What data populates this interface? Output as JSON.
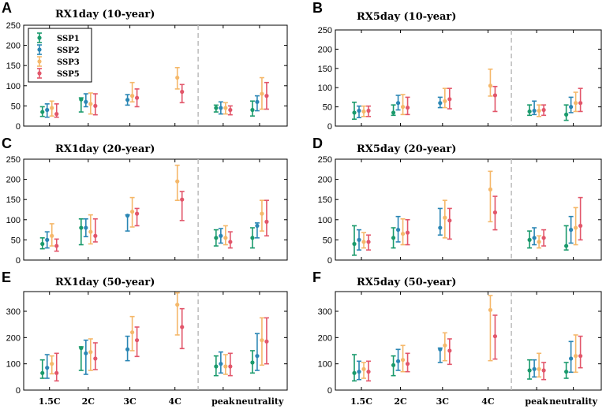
{
  "chart_data": [
    {
      "type": "errorbar",
      "panel": "A",
      "title": "RX1day (10-year)",
      "ylim": [
        0,
        250
      ],
      "yticks": [
        0,
        50,
        100,
        150,
        200,
        250
      ],
      "categories": [
        "1.5C",
        "2C",
        "3C",
        "4C",
        "peak",
        "neutrality"
      ],
      "legend": [
        "SSP1",
        "SSP2",
        "SSP3",
        "SSP5"
      ],
      "series": [
        {
          "name": "SSP1",
          "mean": [
            35,
            66,
            null,
            null,
            45,
            40
          ],
          "low": [
            24,
            35,
            null,
            null,
            35,
            25
          ],
          "high": [
            48,
            70,
            null,
            null,
            52,
            62
          ]
        },
        {
          "name": "SSP2",
          "mean": [
            40,
            60,
            65,
            null,
            45,
            60
          ],
          "low": [
            22,
            48,
            52,
            null,
            30,
            38
          ],
          "high": [
            55,
            80,
            78,
            null,
            60,
            75
          ]
        },
        {
          "name": "SSP3",
          "mean": [
            45,
            55,
            75,
            120,
            45,
            80
          ],
          "low": [
            25,
            30,
            60,
            92,
            30,
            42
          ],
          "high": [
            62,
            82,
            108,
            145,
            58,
            120
          ]
        },
        {
          "name": "SSP5",
          "mean": [
            30,
            50,
            70,
            85,
            40,
            75
          ],
          "low": [
            22,
            28,
            48,
            58,
            28,
            42
          ],
          "high": [
            55,
            80,
            92,
            103,
            50,
            108
          ]
        }
      ]
    },
    {
      "type": "errorbar",
      "panel": "B",
      "title": "RX5day (10-year)",
      "ylim": [
        0,
        250
      ],
      "yticks": [
        0,
        50,
        100,
        150,
        200,
        250
      ],
      "categories": [
        "1.5C",
        "2C",
        "3C",
        "4C",
        "peak",
        "neutrality"
      ],
      "legend": [],
      "series": [
        {
          "name": "SSP1",
          "mean": [
            35,
            35,
            null,
            null,
            38,
            30
          ],
          "low": [
            18,
            28,
            null,
            null,
            28,
            15
          ],
          "high": [
            62,
            55,
            null,
            null,
            55,
            55
          ]
        },
        {
          "name": "SSP2",
          "mean": [
            40,
            60,
            60,
            null,
            40,
            50
          ],
          "low": [
            22,
            42,
            48,
            null,
            30,
            35
          ],
          "high": [
            52,
            80,
            75,
            null,
            65,
            75
          ]
        },
        {
          "name": "SSP3",
          "mean": [
            38,
            50,
            65,
            105,
            40,
            60
          ],
          "low": [
            25,
            30,
            48,
            78,
            25,
            38
          ],
          "high": [
            52,
            82,
            98,
            148,
            55,
            88
          ]
        },
        {
          "name": "SSP5",
          "mean": [
            40,
            48,
            70,
            80,
            42,
            60
          ],
          "low": [
            25,
            30,
            45,
            38,
            28,
            38
          ],
          "high": [
            52,
            75,
            98,
            103,
            55,
            98
          ]
        }
      ]
    },
    {
      "type": "errorbar",
      "panel": "C",
      "title": "RX1day (20-year)",
      "ylim": [
        0,
        250
      ],
      "yticks": [
        0,
        50,
        100,
        150,
        200,
        250
      ],
      "categories": [
        "1.5C",
        "2C",
        "3C",
        "4C",
        "peak",
        "neutrality"
      ],
      "legend": [],
      "series": [
        {
          "name": "SSP1",
          "mean": [
            40,
            80,
            null,
            null,
            55,
            55
          ],
          "low": [
            28,
            38,
            null,
            null,
            35,
            30
          ],
          "high": [
            55,
            102,
            null,
            null,
            75,
            80
          ]
        },
        {
          "name": "SSP2",
          "mean": [
            50,
            80,
            110,
            null,
            60,
            85
          ],
          "low": [
            30,
            58,
            72,
            null,
            42,
            55
          ],
          "high": [
            70,
            102,
            112,
            null,
            78,
            92
          ]
        },
        {
          "name": "SSP3",
          "mean": [
            60,
            70,
            120,
            195,
            55,
            115
          ],
          "low": [
            35,
            40,
            82,
            148,
            38,
            72
          ],
          "high": [
            90,
            112,
            155,
            235,
            85,
            148
          ]
        },
        {
          "name": "SSP5",
          "mean": [
            35,
            60,
            115,
            150,
            45,
            95
          ],
          "low": [
            22,
            45,
            85,
            98,
            30,
            60
          ],
          "high": [
            52,
            102,
            128,
            170,
            70,
            148
          ]
        }
      ]
    },
    {
      "type": "errorbar",
      "panel": "D",
      "title": "RX5day (20-year)",
      "ylim": [
        0,
        250
      ],
      "yticks": [
        0,
        50,
        100,
        150,
        200,
        250
      ],
      "categories": [
        "1.5C",
        "2C",
        "3C",
        "4C",
        "peak",
        "neutrality"
      ],
      "legend": [],
      "series": [
        {
          "name": "SSP1",
          "mean": [
            40,
            55,
            null,
            null,
            50,
            35
          ],
          "low": [
            12,
            30,
            null,
            null,
            30,
            25
          ],
          "high": [
            85,
            80,
            null,
            null,
            72,
            85
          ]
        },
        {
          "name": "SSP2",
          "mean": [
            50,
            75,
            80,
            null,
            55,
            75
          ],
          "low": [
            25,
            45,
            62,
            null,
            38,
            42
          ],
          "high": [
            75,
            108,
            128,
            null,
            80,
            108
          ]
        },
        {
          "name": "SSP3",
          "mean": [
            45,
            65,
            105,
            175,
            45,
            80
          ],
          "low": [
            30,
            38,
            55,
            95,
            30,
            38
          ],
          "high": [
            68,
            102,
            148,
            220,
            60,
            130
          ]
        },
        {
          "name": "SSP5",
          "mean": [
            45,
            68,
            98,
            118,
            55,
            85
          ],
          "low": [
            25,
            38,
            52,
            75,
            35,
            50
          ],
          "high": [
            62,
            100,
            128,
            158,
            75,
            155
          ]
        }
      ]
    },
    {
      "type": "errorbar",
      "panel": "E",
      "title": "RX1day (50-year)",
      "ylim": [
        0,
        375
      ],
      "yticks": [
        0,
        100,
        200,
        300
      ],
      "categories": [
        "1.5C",
        "2C",
        "3C",
        "4C",
        "peak",
        "neutrality"
      ],
      "legend": [],
      "series": [
        {
          "name": "SSP1",
          "mean": [
            65,
            160,
            null,
            null,
            90,
            105
          ],
          "low": [
            45,
            75,
            null,
            null,
            55,
            65
          ],
          "high": [
            115,
            165,
            null,
            null,
            130,
            150
          ]
        },
        {
          "name": "SSP2",
          "mean": [
            85,
            140,
            155,
            null,
            100,
            130
          ],
          "low": [
            45,
            60,
            112,
            null,
            65,
            75
          ],
          "high": [
            135,
            190,
            205,
            null,
            145,
            215
          ]
        },
        {
          "name": "SSP3",
          "mean": [
            100,
            145,
            220,
            325,
            90,
            190
          ],
          "low": [
            62,
            75,
            150,
            210,
            60,
            95
          ],
          "high": [
            130,
            195,
            280,
            370,
            135,
            275
          ]
        },
        {
          "name": "SSP5",
          "mean": [
            65,
            120,
            190,
            240,
            90,
            185
          ],
          "low": [
            35,
            78,
            128,
            158,
            55,
            100
          ],
          "high": [
            140,
            180,
            240,
            310,
            140,
            275
          ]
        }
      ]
    },
    {
      "type": "errorbar",
      "panel": "F",
      "title": "RX5day (50-year)",
      "ylim": [
        0,
        375
      ],
      "yticks": [
        0,
        100,
        200,
        300
      ],
      "categories": [
        "1.5C",
        "2C",
        "3C",
        "4C",
        "peak",
        "neutrality"
      ],
      "legend": [],
      "series": [
        {
          "name": "SSP1",
          "mean": [
            65,
            95,
            null,
            null,
            75,
            70
          ],
          "low": [
            35,
            55,
            null,
            null,
            42,
            45
          ],
          "high": [
            135,
            130,
            null,
            null,
            115,
            105
          ]
        },
        {
          "name": "SSP2",
          "mean": [
            70,
            110,
            155,
            null,
            80,
            120
          ],
          "low": [
            40,
            75,
            105,
            null,
            50,
            68
          ],
          "high": [
            110,
            155,
            160,
            null,
            115,
            185
          ]
        },
        {
          "name": "SSP3",
          "mean": [
            80,
            115,
            170,
            305,
            80,
            130
          ],
          "low": [
            45,
            70,
            112,
            112,
            50,
            68
          ],
          "high": [
            105,
            170,
            218,
            360,
            140,
            210
          ]
        },
        {
          "name": "SSP5",
          "mean": [
            70,
            100,
            150,
            205,
            75,
            130
          ],
          "low": [
            35,
            70,
            98,
            118,
            40,
            85
          ],
          "high": [
            110,
            140,
            195,
            285,
            105,
            205
          ]
        }
      ]
    }
  ],
  "colors": {
    "SSP1": "#1a9a6c",
    "SSP2": "#2a86b4",
    "SSP3": "#f5b86a",
    "SSP5": "#e2566a",
    "separator": "#bbbbbb"
  }
}
